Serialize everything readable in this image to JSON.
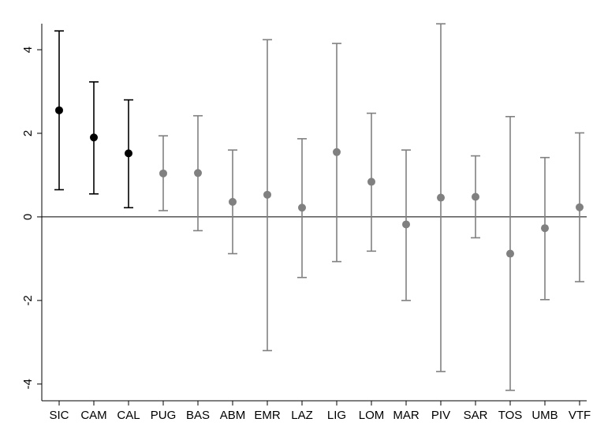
{
  "chart_data": {
    "type": "errorbar",
    "title": "",
    "xlabel": "",
    "ylabel": "",
    "categories": [
      "SIC",
      "CAM",
      "CAL",
      "PUG",
      "BAS",
      "ABM",
      "EMR",
      "LAZ",
      "LIG",
      "LOM",
      "MAR",
      "PIV",
      "SAR",
      "TOS",
      "UMB",
      "VTF"
    ],
    "estimates": [
      2.55,
      1.9,
      1.52,
      1.04,
      1.05,
      0.36,
      0.53,
      0.22,
      1.55,
      0.84,
      -0.18,
      0.46,
      0.48,
      -0.88,
      -0.27,
      0.23
    ],
    "lower": [
      0.65,
      0.55,
      0.22,
      0.15,
      -0.33,
      -0.88,
      -3.2,
      -1.45,
      -1.07,
      -0.82,
      -2.0,
      -3.7,
      -0.5,
      -4.15,
      -1.98,
      -1.55
    ],
    "upper": [
      4.45,
      3.23,
      2.8,
      1.94,
      2.42,
      1.6,
      4.24,
      1.87,
      4.15,
      2.48,
      1.6,
      4.62,
      1.46,
      2.4,
      1.42,
      2.01
    ],
    "significant": [
      true,
      true,
      true,
      false,
      false,
      false,
      false,
      false,
      false,
      false,
      false,
      false,
      false,
      false,
      false,
      false
    ],
    "reference_line": 0,
    "ylim": [
      -4.4,
      4.85
    ],
    "yticks": [
      -4,
      -2,
      0,
      2,
      4
    ],
    "ytick_labels": [
      "-4",
      "-2",
      "0",
      "2",
      "4"
    ],
    "grid": false,
    "legend": "none",
    "colors": {
      "significant": "#000000",
      "not_significant": "#808080",
      "reference_line": "#000000",
      "axis": "#000000"
    }
  }
}
